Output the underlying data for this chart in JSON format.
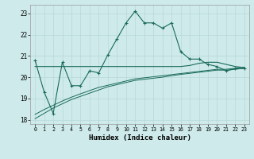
{
  "xlabel": "Humidex (Indice chaleur)",
  "background_color": "#ceeaea",
  "grid_color": "#b8d8d8",
  "line_color": "#1a6b5a",
  "xlim": [
    -0.5,
    23.5
  ],
  "ylim": [
    17.8,
    23.4
  ],
  "yticks": [
    18,
    19,
    20,
    21,
    22,
    23
  ],
  "xticks": [
    0,
    1,
    2,
    3,
    4,
    5,
    6,
    7,
    8,
    9,
    10,
    11,
    12,
    13,
    14,
    15,
    16,
    17,
    18,
    19,
    20,
    21,
    22,
    23
  ],
  "series1_x": [
    0,
    1,
    2,
    3,
    4,
    5,
    6,
    7,
    8,
    9,
    10,
    11,
    12,
    13,
    14,
    15,
    16,
    17,
    18,
    19,
    20,
    21,
    22,
    23
  ],
  "series1_y": [
    20.8,
    19.3,
    18.3,
    20.7,
    19.6,
    19.6,
    20.3,
    20.2,
    21.05,
    21.8,
    22.55,
    23.1,
    22.55,
    22.55,
    22.3,
    22.55,
    21.2,
    20.85,
    20.85,
    20.6,
    20.5,
    20.3,
    20.4,
    20.4
  ],
  "series2_x": [
    0,
    1,
    2,
    3,
    4,
    5,
    6,
    7,
    8,
    9,
    10,
    11,
    12,
    13,
    14,
    15,
    16,
    17,
    18,
    19,
    20,
    21,
    22,
    23
  ],
  "series2_y": [
    20.5,
    20.5,
    20.5,
    20.5,
    20.5,
    20.5,
    20.5,
    20.5,
    20.5,
    20.5,
    20.5,
    20.5,
    20.5,
    20.5,
    20.5,
    20.5,
    20.5,
    20.55,
    20.65,
    20.7,
    20.7,
    20.6,
    20.5,
    20.45
  ],
  "series3_x": [
    0,
    1,
    2,
    3,
    4,
    5,
    6,
    7,
    8,
    9,
    10,
    11,
    12,
    13,
    14,
    15,
    16,
    17,
    18,
    19,
    20,
    21,
    22,
    23
  ],
  "series3_y": [
    18.05,
    18.3,
    18.55,
    18.75,
    18.95,
    19.1,
    19.25,
    19.4,
    19.55,
    19.65,
    19.75,
    19.85,
    19.9,
    19.95,
    20.0,
    20.07,
    20.13,
    20.18,
    20.23,
    20.28,
    20.33,
    20.33,
    20.37,
    20.42
  ],
  "series4_x": [
    0,
    1,
    2,
    3,
    4,
    5,
    6,
    7,
    8,
    9,
    10,
    11,
    12,
    13,
    14,
    15,
    16,
    17,
    18,
    19,
    20,
    21,
    22,
    23
  ],
  "series4_y": [
    18.25,
    18.48,
    18.68,
    18.88,
    19.06,
    19.22,
    19.37,
    19.52,
    19.62,
    19.72,
    19.82,
    19.92,
    19.97,
    20.02,
    20.07,
    20.12,
    20.17,
    20.22,
    20.27,
    20.32,
    20.37,
    20.37,
    20.42,
    20.47
  ]
}
